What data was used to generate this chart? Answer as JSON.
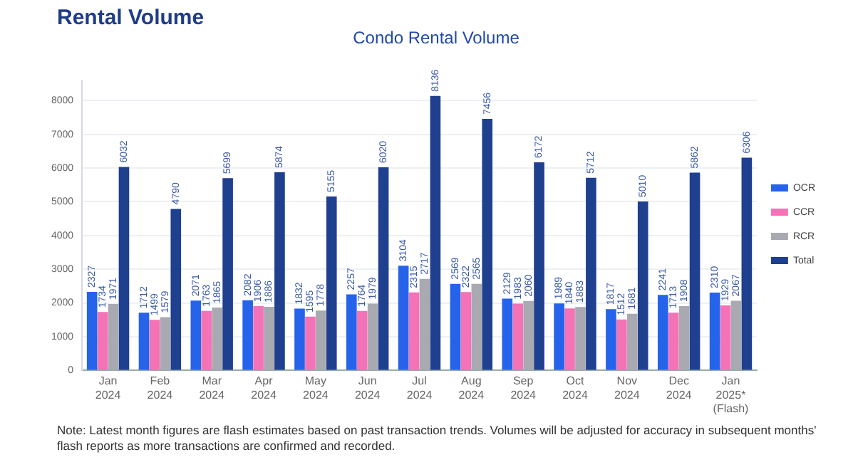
{
  "chart_data": {
    "type": "bar",
    "title": "Rental Volume",
    "subtitle": "Condo Rental Volume",
    "categories": [
      "Jan\n2024",
      "Feb\n2024",
      "Mar\n2024",
      "Apr\n2024",
      "May\n2024",
      "Jun\n2024",
      "Jul\n2024",
      "Aug\n2024",
      "Sep\n2024",
      "Oct\n2024",
      "Nov\n2024",
      "Dec\n2024",
      "Jan\n2025*\n(Flash)"
    ],
    "series": [
      {
        "name": "OCR",
        "color": "#2563eb",
        "values": [
          2327,
          1712,
          2071,
          2082,
          1832,
          2257,
          3104,
          2569,
          2129,
          1989,
          1817,
          2241,
          2310
        ]
      },
      {
        "name": "CCR",
        "color": "#f472b6",
        "values": [
          1734,
          1499,
          1763,
          1906,
          1595,
          1764,
          2315,
          2322,
          1983,
          1840,
          1512,
          1713,
          1929
        ]
      },
      {
        "name": "RCR",
        "color": "#a9a9b2",
        "values": [
          1971,
          1579,
          1865,
          1886,
          1778,
          1979,
          2717,
          2565,
          2060,
          1883,
          1681,
          1908,
          2067
        ]
      },
      {
        "name": "Total",
        "color": "#1f3f8f",
        "values": [
          6032,
          4790,
          5699,
          5874,
          5155,
          6020,
          8136,
          7456,
          6172,
          5712,
          5010,
          5862,
          6306
        ]
      }
    ],
    "ylim": [
      0,
      8600
    ],
    "yticks": [
      0,
      1000,
      2000,
      3000,
      4000,
      5000,
      6000,
      7000,
      8000
    ],
    "grid": "y",
    "legend": "right",
    "data_labels": true,
    "annotations": [
      "Note: Latest month figures are flash estimates based on past transaction trends. Volumes will be adjusted for accuracy in subsequent months' flash reports as more transactions are confirmed and recorded."
    ]
  }
}
